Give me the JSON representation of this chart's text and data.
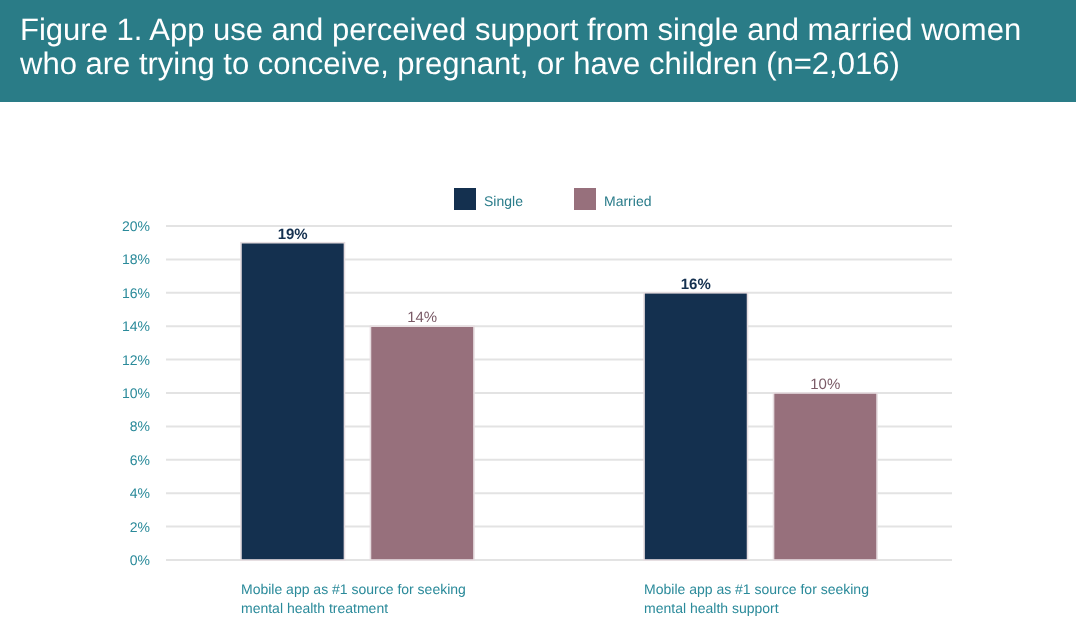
{
  "chart_data": {
    "type": "bar",
    "title": "Figure 1. App use and perceived support from single and married women who are trying to conceive, pregnant, or have children (n=2,016)",
    "categories": [
      "Mobile app as #1 source for seeking mental health treatment",
      "Mobile app as #1 source for seeking mental health support"
    ],
    "series": [
      {
        "name": "Single",
        "color": "#14304f",
        "values": [
          19,
          16
        ],
        "value_labels": [
          "19%",
          "16%"
        ]
      },
      {
        "name": "Married",
        "color": "#97707c",
        "values": [
          14,
          10
        ],
        "value_labels": [
          "14%",
          "10%"
        ]
      }
    ],
    "ylim": [
      0,
      20
    ],
    "yticks": [
      {
        "value": 0,
        "label": "0%"
      },
      {
        "value": 2,
        "label": "2%"
      },
      {
        "value": 4,
        "label": "4%"
      },
      {
        "value": 6,
        "label": "6%"
      },
      {
        "value": 8,
        "label": "8%"
      },
      {
        "value": 10,
        "label": "10%"
      },
      {
        "value": 12,
        "label": "12%"
      },
      {
        "value": 14,
        "label": "14%"
      },
      {
        "value": 16,
        "label": "16%"
      },
      {
        "value": 18,
        "label": "18%"
      },
      {
        "value": 20,
        "label": "20%"
      }
    ],
    "grid": "y",
    "legend": "top"
  }
}
